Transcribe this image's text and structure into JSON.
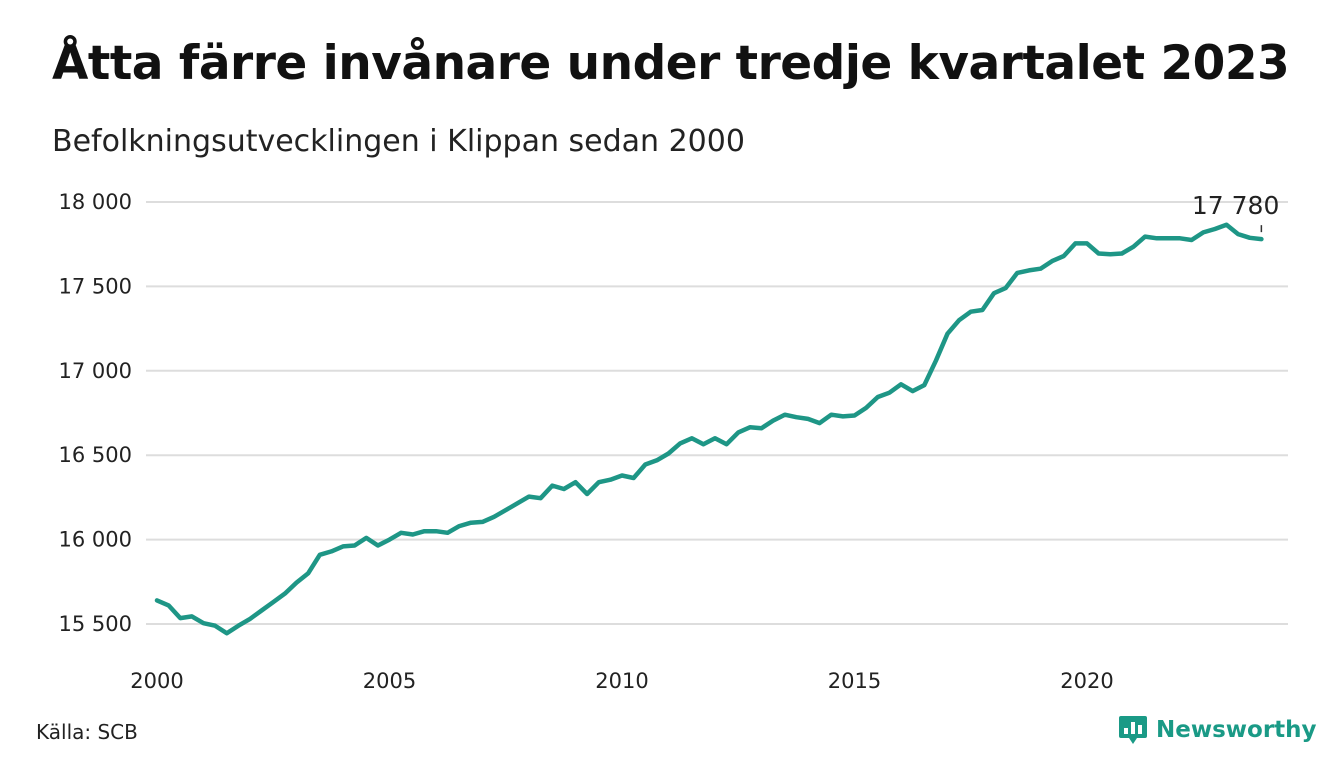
{
  "title": "Åtta färre invånare under tredje kvartalet 2023",
  "subtitle": "Befolkningsutvecklingen i Klippan sedan 2000",
  "source": "Källa: SCB",
  "brand": {
    "name": "Newsworthy",
    "icon": "newsworthy-logo-icon",
    "color": "#1a9a86"
  },
  "colors": {
    "line": "#1e9686",
    "grid": "#dddddd",
    "text": "#222222"
  },
  "chart_data": {
    "type": "line",
    "title": "Åtta färre invånare under tredje kvartalet 2023",
    "subtitle": "Befolkningsutvecklingen i Klippan sedan 2000",
    "xlabel": "",
    "ylabel": "",
    "xlim": [
      2000,
      2024.5
    ],
    "ylim": [
      15450,
      18000
    ],
    "grid": true,
    "x_ticks": [
      {
        "value": 2000,
        "label": "2000"
      },
      {
        "value": 2005,
        "label": "2005"
      },
      {
        "value": 2010,
        "label": "2010"
      },
      {
        "value": 2015,
        "label": "2015"
      },
      {
        "value": 2020,
        "label": "2020"
      }
    ],
    "y_ticks": [
      {
        "value": 15500,
        "label": "15 500"
      },
      {
        "value": 16000,
        "label": "16 000"
      },
      {
        "value": 16500,
        "label": "16 500"
      },
      {
        "value": 17000,
        "label": "17 000"
      },
      {
        "value": 17500,
        "label": "17 500"
      },
      {
        "value": 18000,
        "label": "18 000"
      }
    ],
    "end_label": "17 780",
    "series": [
      {
        "color": "#1e9686",
        "points": [
          [
            2000.0,
            15640
          ],
          [
            2000.25,
            15610
          ],
          [
            2000.5,
            15535
          ],
          [
            2000.75,
            15545
          ],
          [
            2001.0,
            15505
          ],
          [
            2001.25,
            15490
          ],
          [
            2001.5,
            15445
          ],
          [
            2001.75,
            15490
          ],
          [
            2002.0,
            15530
          ],
          [
            2002.25,
            15580
          ],
          [
            2002.5,
            15630
          ],
          [
            2002.75,
            15680
          ],
          [
            2003.0,
            15745
          ],
          [
            2003.25,
            15800
          ],
          [
            2003.5,
            15910
          ],
          [
            2003.75,
            15930
          ],
          [
            2004.0,
            15960
          ],
          [
            2004.25,
            15965
          ],
          [
            2004.5,
            16010
          ],
          [
            2004.75,
            15965
          ],
          [
            2005.0,
            16000
          ],
          [
            2005.25,
            16040
          ],
          [
            2005.5,
            16030
          ],
          [
            2005.75,
            16050
          ],
          [
            2006.0,
            16050
          ],
          [
            2006.25,
            16040
          ],
          [
            2006.5,
            16080
          ],
          [
            2006.75,
            16100
          ],
          [
            2007.0,
            16105
          ],
          [
            2007.25,
            16135
          ],
          [
            2007.5,
            16175
          ],
          [
            2007.75,
            16215
          ],
          [
            2008.0,
            16255
          ],
          [
            2008.25,
            16245
          ],
          [
            2008.5,
            16320
          ],
          [
            2008.75,
            16300
          ],
          [
            2009.0,
            16340
          ],
          [
            2009.25,
            16270
          ],
          [
            2009.5,
            16340
          ],
          [
            2009.75,
            16355
          ],
          [
            2010.0,
            16380
          ],
          [
            2010.25,
            16365
          ],
          [
            2010.5,
            16445
          ],
          [
            2010.75,
            16470
          ],
          [
            2011.0,
            16510
          ],
          [
            2011.25,
            16570
          ],
          [
            2011.5,
            16600
          ],
          [
            2011.75,
            16565
          ],
          [
            2012.0,
            16600
          ],
          [
            2012.25,
            16565
          ],
          [
            2012.5,
            16635
          ],
          [
            2012.75,
            16665
          ],
          [
            2013.0,
            16660
          ],
          [
            2013.25,
            16705
          ],
          [
            2013.5,
            16740
          ],
          [
            2013.75,
            16725
          ],
          [
            2014.0,
            16715
          ],
          [
            2014.25,
            16690
          ],
          [
            2014.5,
            16740
          ],
          [
            2014.75,
            16730
          ],
          [
            2015.0,
            16735
          ],
          [
            2015.25,
            16780
          ],
          [
            2015.5,
            16845
          ],
          [
            2015.75,
            16870
          ],
          [
            2016.0,
            16920
          ],
          [
            2016.25,
            16880
          ],
          [
            2016.5,
            16915
          ],
          [
            2016.75,
            17060
          ],
          [
            2017.0,
            17220
          ],
          [
            2017.25,
            17300
          ],
          [
            2017.5,
            17350
          ],
          [
            2017.75,
            17360
          ],
          [
            2018.0,
            17460
          ],
          [
            2018.25,
            17490
          ],
          [
            2018.5,
            17580
          ],
          [
            2018.75,
            17595
          ],
          [
            2019.0,
            17605
          ],
          [
            2019.25,
            17650
          ],
          [
            2019.5,
            17680
          ],
          [
            2019.75,
            17755
          ],
          [
            2020.0,
            17755
          ],
          [
            2020.25,
            17695
          ],
          [
            2020.5,
            17690
          ],
          [
            2020.75,
            17695
          ],
          [
            2021.0,
            17735
          ],
          [
            2021.25,
            17795
          ],
          [
            2021.5,
            17785
          ],
          [
            2021.75,
            17785
          ],
          [
            2022.0,
            17785
          ],
          [
            2022.25,
            17775
          ],
          [
            2022.5,
            17820
          ],
          [
            2022.75,
            17840
          ],
          [
            2023.0,
            17865
          ],
          [
            2023.25,
            17810
          ],
          [
            2023.5,
            17788
          ],
          [
            2023.75,
            17780
          ]
        ]
      }
    ]
  }
}
